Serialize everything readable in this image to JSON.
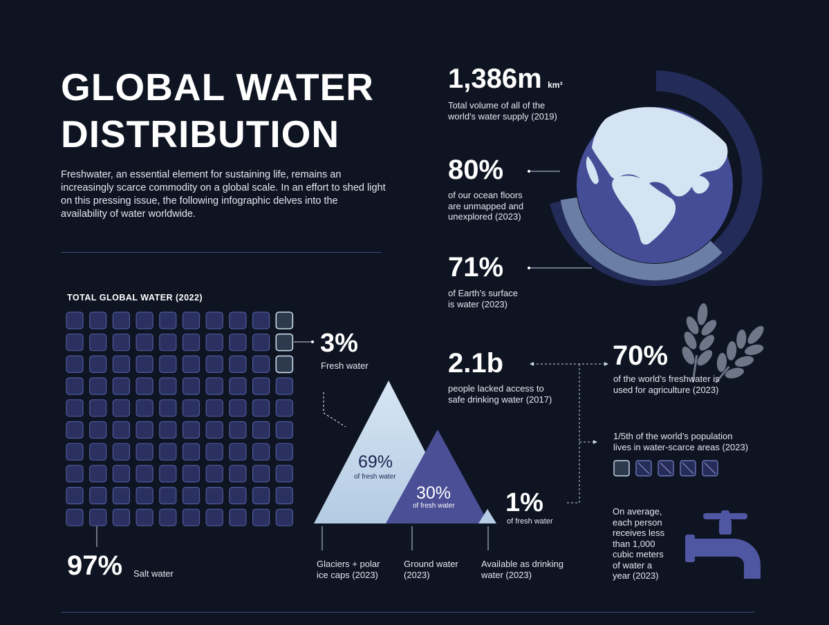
{
  "header": {
    "title_line1": "GLOBAL WATER",
    "title_line2": "DISTRIBUTION",
    "intro": "Freshwater, an essential element for sustaining life, remains an increasingly scarce commodity on a global scale. In an effort to shed light on this pressing issue, the following infographic delves into the availability of water worldwide."
  },
  "grid": {
    "title": "TOTAL GLOBAL WATER (2022)",
    "fresh_pct": "3%",
    "fresh_label": "Fresh water",
    "salt_pct": "97%",
    "salt_label": "Salt water"
  },
  "globe_stats": {
    "volume_value": "1,386m",
    "volume_unit": "km³",
    "volume_caption_1": "Total volume of all of the",
    "volume_caption_2": "world's water supply (2019)",
    "ocean_value": "80%",
    "ocean_caption_1": "of our ocean floors",
    "ocean_caption_2": "are unmapped and",
    "ocean_caption_3": "unexplored (2023)",
    "surface_value": "71%",
    "surface_caption_1": "of Earth’s surface",
    "surface_caption_2": "is water (2023)"
  },
  "freshwater": {
    "glaciers_pct": "69%",
    "glaciers_sub": "of fresh water",
    "ground_pct": "30%",
    "ground_sub": "of fresh water",
    "drinking_pct": "1%",
    "drinking_sub": "of fresh water",
    "glaciers_label_1": "Glaciers + polar",
    "glaciers_label_2": "ice caps (2023)",
    "ground_label_1": "Ground water",
    "ground_label_2": "(2023)",
    "drinking_label_1": "Available as drinking",
    "drinking_label_2": "water (2023)"
  },
  "access": {
    "value": "2.1b",
    "caption_1": "people lacked access to",
    "caption_2": "safe drinking water (2017)",
    "agri_value": "70%",
    "agri_caption_1": "of the world’s freshwater is",
    "agri_caption_2": "used for agriculture (2023)",
    "scarce_caption_1": "1/5th of the world’s population",
    "scarce_caption_2": "lives in water-scarce areas (2023)",
    "tap_1": "On average,",
    "tap_2": "each person",
    "tap_3": "receives less",
    "tap_4": "than 1,000",
    "tap_5": "cubic meters",
    "tap_6": "of water a",
    "tap_7": "year (2023)"
  },
  "chart_data": [
    {
      "type": "waffle",
      "title": "TOTAL GLOBAL WATER (2022)",
      "categories": [
        "Fresh water",
        "Salt water"
      ],
      "values": [
        3,
        97
      ],
      "unit": "%"
    },
    {
      "type": "area",
      "categories": [
        "Glaciers + polar ice caps (2023)",
        "Ground water (2023)",
        "Available as drinking water (2023)"
      ],
      "values": [
        69,
        30,
        1
      ],
      "unit": "% of fresh water"
    },
    {
      "type": "pie",
      "categories": [
        "Earth’s surface is water (2023)",
        "Ocean floors unmapped and unexplored (2023)"
      ],
      "values": [
        71,
        80
      ],
      "unit": "%"
    },
    {
      "type": "waffle",
      "categories": [
        "Population in water-scarce areas (2023)"
      ],
      "values": [
        1
      ],
      "total": 5
    }
  ],
  "colors": {
    "background": "#0f1422",
    "cell_salt": "#2a3160",
    "cell_salt_border": "#4e5a9c",
    "cell_fresh": "#2d3a4e",
    "cell_fresh_border": "#c8dbe8",
    "glacier": "#c9def0",
    "ground": "#4a4f96",
    "drinking": "#b7cde6",
    "ring_outer": "#232c58",
    "ring_inner": "#6b7fa6",
    "globe_ocean": "#444d96",
    "globe_land": "#d5e4f2",
    "tap": "#4f56a2",
    "wheat": "#6e7687"
  },
  "icons": [
    "globe-icon",
    "wheat-icon",
    "water-tap-icon",
    "person-square-icon"
  ]
}
